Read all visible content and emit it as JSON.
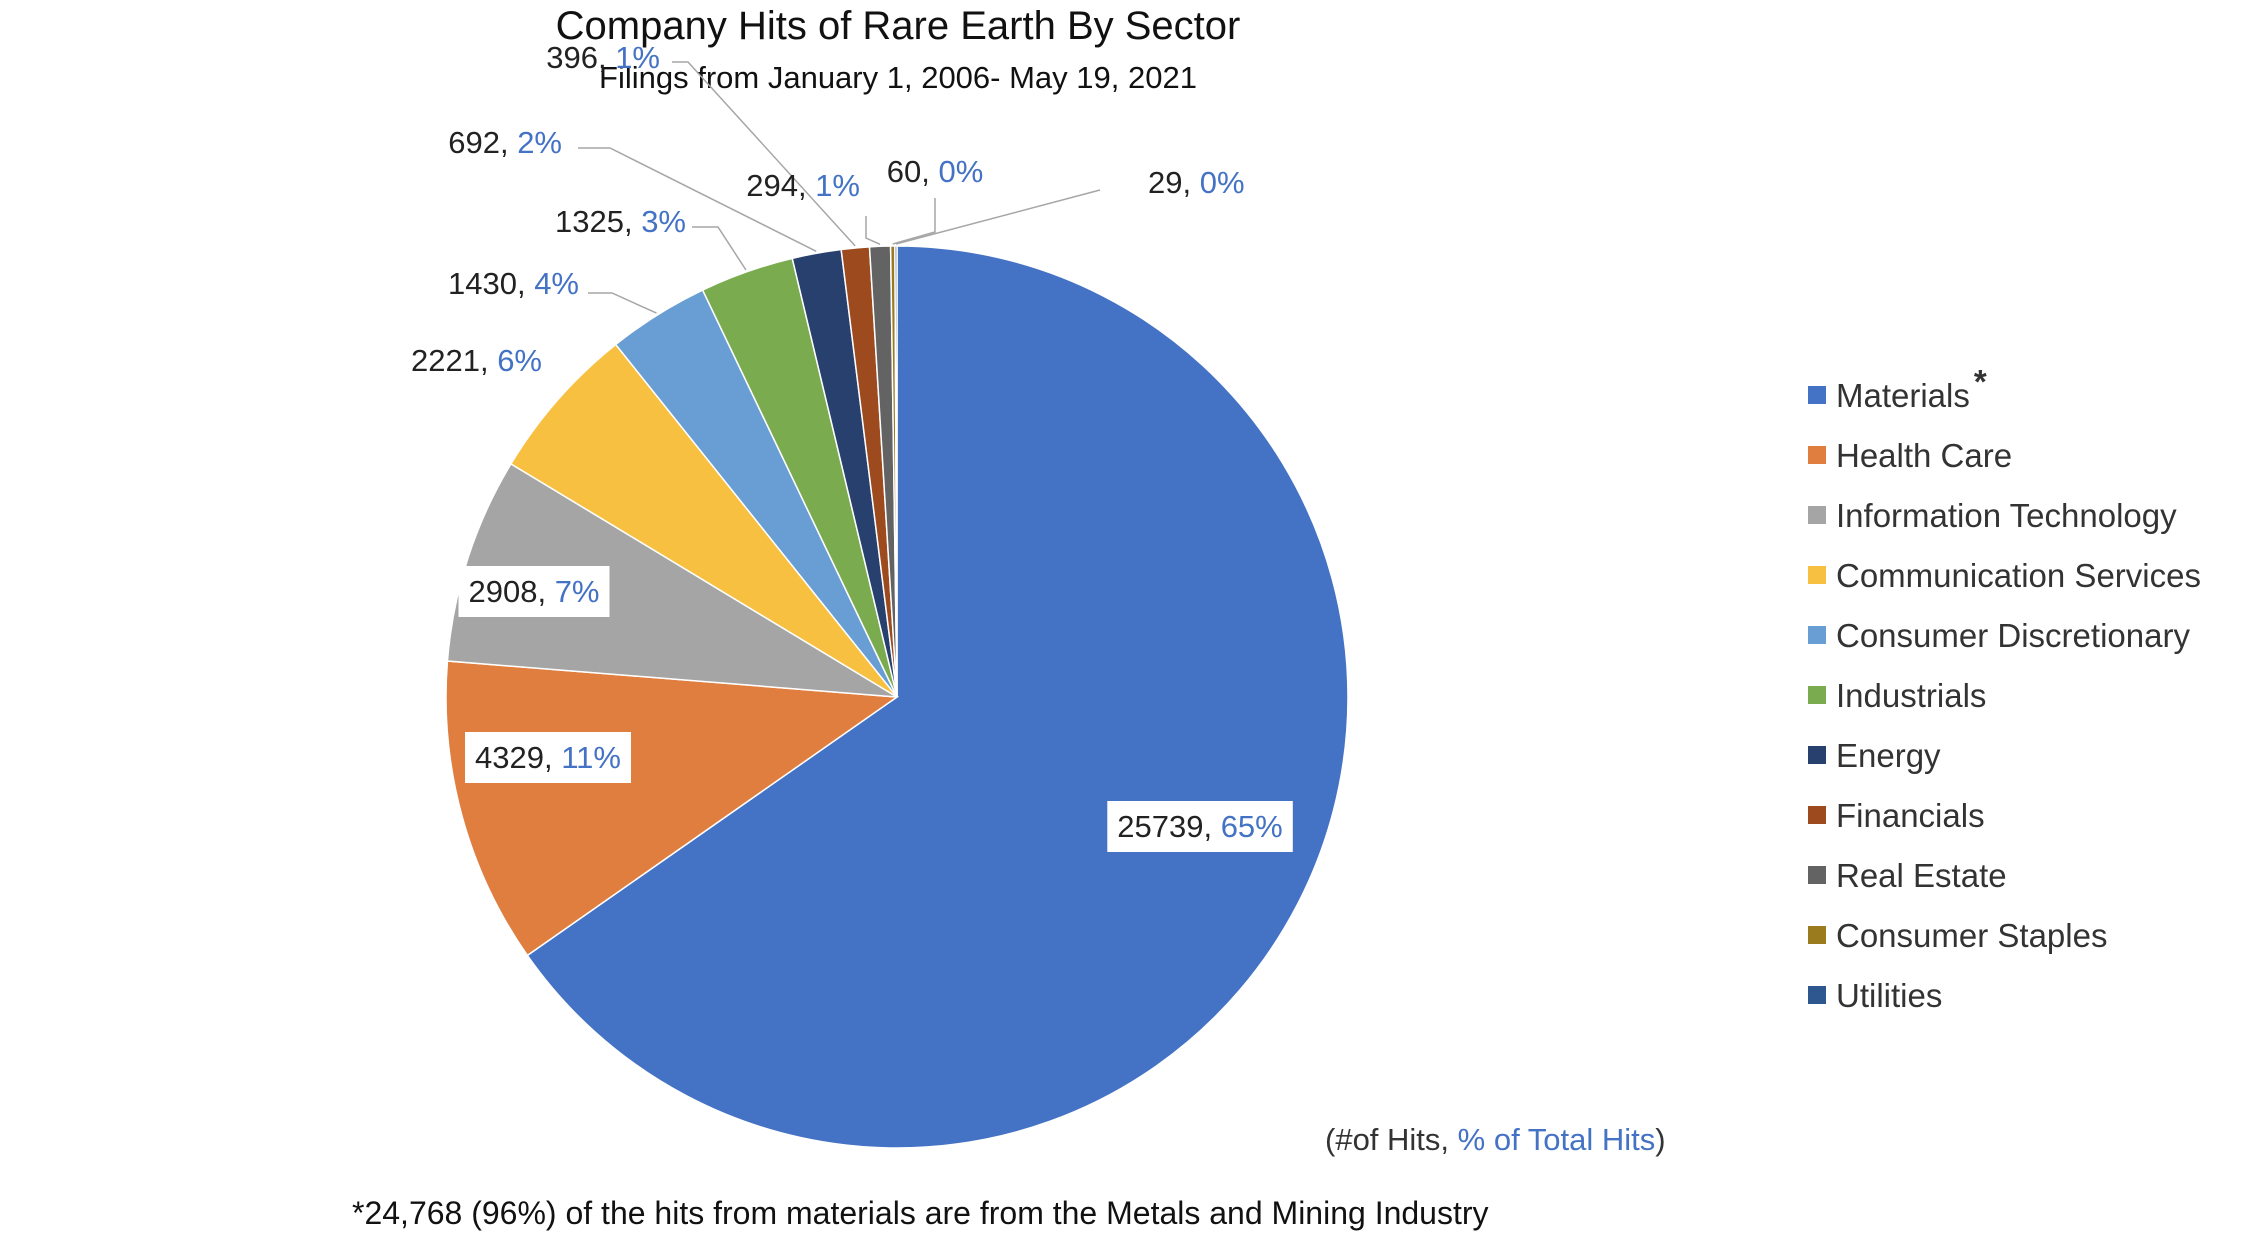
{
  "chart_data": {
    "type": "pie",
    "title": "Company Hits of Rare Earth By Sector",
    "subtitle": "Filings from January 1, 2006- May 19, 2021",
    "slices": [
      {
        "name": "Materials",
        "value": 25739,
        "pct": "65%",
        "color": "#4472C4"
      },
      {
        "name": "Health Care",
        "value": 4329,
        "pct": "11%",
        "color": "#E07E3F"
      },
      {
        "name": "Information Technology",
        "value": 2908,
        "pct": "7%",
        "color": "#A5A5A5"
      },
      {
        "name": "Communication Services",
        "value": 2221,
        "pct": "6%",
        "color": "#F8C040"
      },
      {
        "name": "Consumer Discretionary",
        "value": 1430,
        "pct": "4%",
        "color": "#699ED4"
      },
      {
        "name": "Industrials",
        "value": 1325,
        "pct": "3%",
        "color": "#7BAB4F"
      },
      {
        "name": "Energy",
        "value": 692,
        "pct": "2%",
        "color": "#27406E"
      },
      {
        "name": "Financials",
        "value": 396,
        "pct": "1%",
        "color": "#9D4A1F"
      },
      {
        "name": "Real Estate",
        "value": 294,
        "pct": "1%",
        "color": "#636363"
      },
      {
        "name": "Consumer Staples",
        "value": 60,
        "pct": "0%",
        "color": "#9A7B1E"
      },
      {
        "name": "Utilities",
        "value": 29,
        "pct": "0%",
        "color": "#2E568F"
      }
    ],
    "legend_position": "right",
    "legend_marker": "*",
    "units_note": {
      "part1": "(#of Hits, ",
      "part2": "% of Total Hits",
      "part3": ")"
    },
    "footnote": "*24,768 (96%) of the hits from materials are from the Metals and Mining Industry"
  }
}
